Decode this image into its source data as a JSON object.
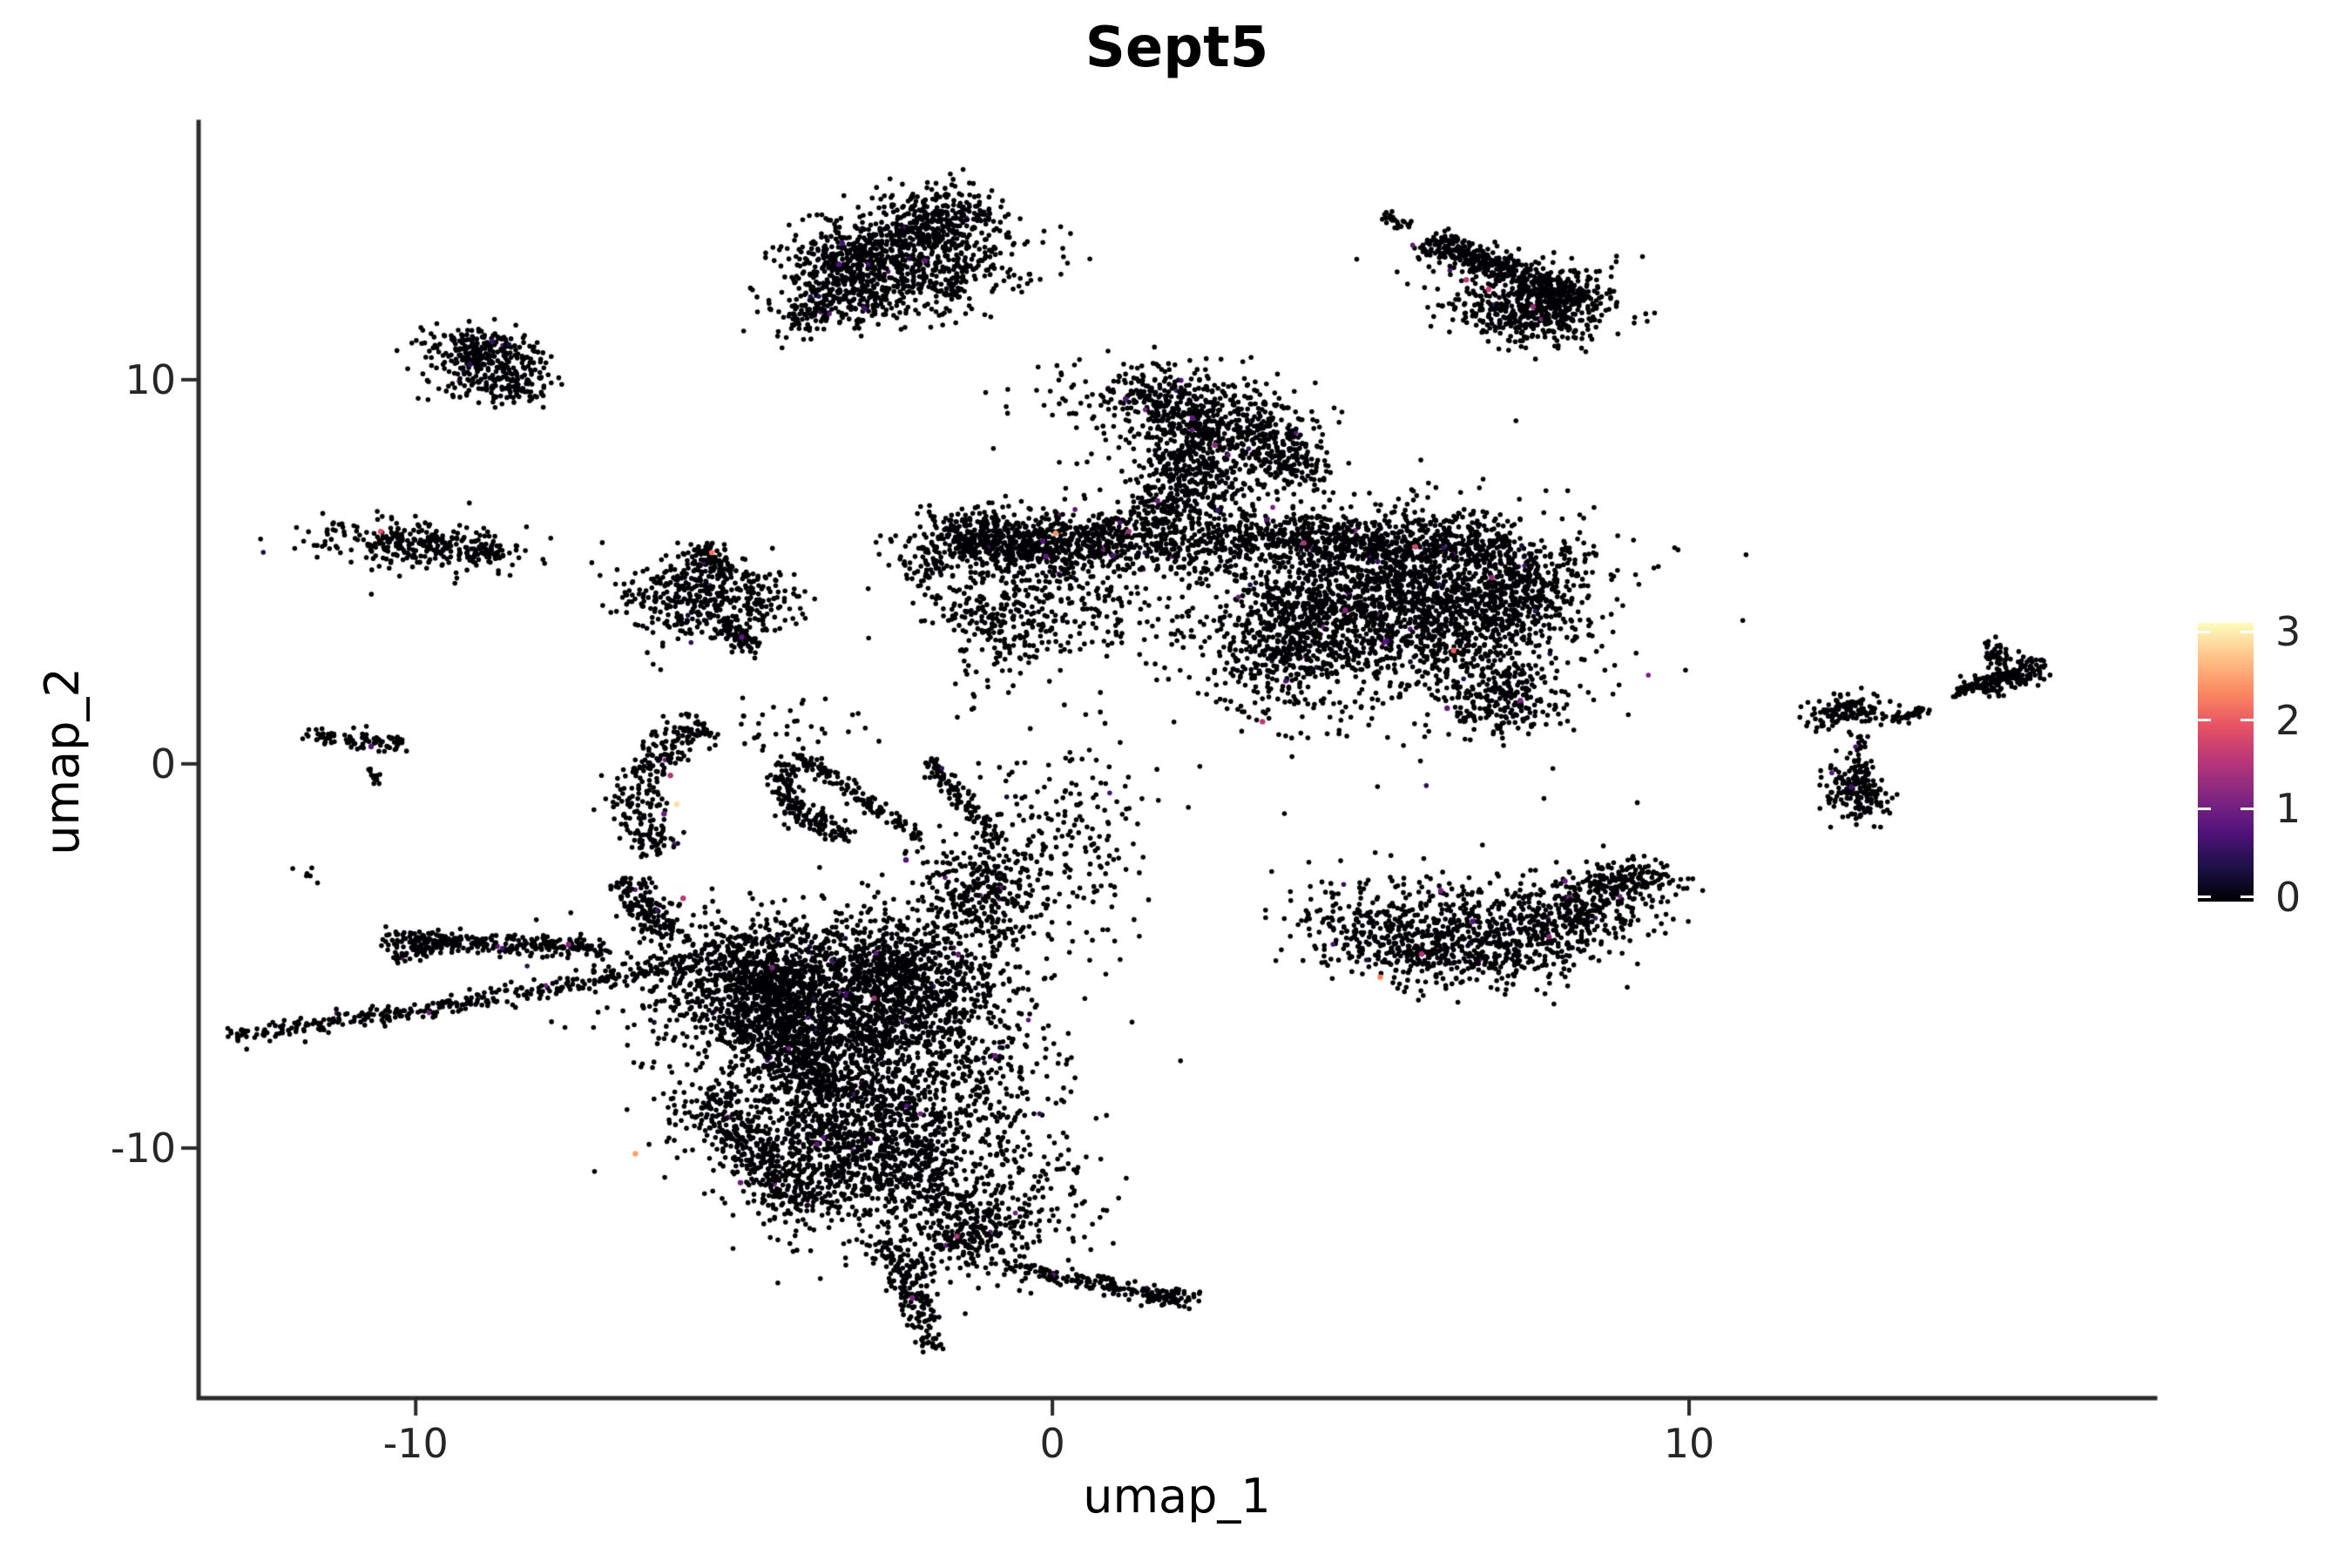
{
  "title": "Sept5",
  "axes": {
    "x_label": "umap_1",
    "y_label": "umap_2",
    "x_ticks": [
      -10,
      0,
      10
    ],
    "y_ticks": [
      -10,
      0,
      10
    ]
  },
  "legend": {
    "ticks": [
      0,
      1,
      2,
      3
    ],
    "bar_range": [
      -0.05,
      3.1
    ],
    "colormap": [
      "#000004",
      "#1D1147",
      "#51127C",
      "#822681",
      "#B63679",
      "#E65164",
      "#FB8861",
      "#FEC287",
      "#FCFDBF"
    ]
  },
  "chart_data": {
    "type": "scatter",
    "title": "Sept5",
    "xlabel": "umap_1",
    "ylabel": "umap_2",
    "xlim": [
      -13.41,
      17.32
    ],
    "ylim": [
      -16.51,
      16.71
    ],
    "grid": false,
    "legend_position": "right",
    "value_range": [
      0,
      3.1
    ],
    "point_radius_px": 2.8,
    "seed": 7,
    "sprinkle": {
      "fraction": 0.008,
      "value_range": [
        0.25,
        1.1
      ]
    },
    "clusters": [
      {
        "kind": "line",
        "x1": -3.7,
        "y1": 12.6,
        "x2": -1.2,
        "y2": 14.6,
        "w": 0.45,
        "n": 600
      },
      {
        "kind": "blob",
        "cx": -2.3,
        "cy": 13.1,
        "sx": 1.0,
        "sy": 0.7,
        "rot": 28,
        "n": 400
      },
      {
        "kind": "line",
        "x1": -4.15,
        "y1": 11.5,
        "x2": -3.1,
        "y2": 12.35,
        "w": 0.28,
        "n": 140
      },
      {
        "kind": "blob",
        "cx": -1.8,
        "cy": 12.5,
        "sx": 0.8,
        "sy": 0.45,
        "rot": 10,
        "n": 160
      },
      {
        "kind": "blob",
        "cx": -2.9,
        "cy": 11.9,
        "sx": 0.5,
        "sy": 0.3,
        "rot": 0,
        "n": 45
      },
      {
        "kind": "line",
        "x1": 5.22,
        "y1": 14.35,
        "x2": 5.62,
        "y2": 13.95,
        "w": 0.07,
        "n": 25
      },
      {
        "kind": "line",
        "x1": 5.9,
        "y1": 13.65,
        "x2": 8.3,
        "y2": 12.0,
        "w": 0.2,
        "n": 360
      },
      {
        "kind": "blob",
        "cx": 7.3,
        "cy": 12.4,
        "sx": 0.8,
        "sy": 0.4,
        "rot": -30,
        "n": 150
      },
      {
        "kind": "blob",
        "cx": 8.0,
        "cy": 11.95,
        "sx": 0.42,
        "sy": 0.5,
        "rot": -25,
        "n": 280
      },
      {
        "kind": "blob",
        "cx": 7.1,
        "cy": 11.6,
        "sx": 0.45,
        "sy": 0.3,
        "rot": -15,
        "n": 170
      },
      {
        "kind": "blob",
        "cx": -9.05,
        "cy": 10.85,
        "sx": 0.42,
        "sy": 0.3,
        "rot": -10,
        "n": 160
      },
      {
        "kind": "blob",
        "cx": -8.8,
        "cy": 10.25,
        "sx": 0.45,
        "sy": 0.38,
        "rot": 15,
        "n": 180
      },
      {
        "kind": "blob",
        "cx": -8.35,
        "cy": 9.8,
        "sx": 0.24,
        "sy": 0.22,
        "rot": 0,
        "n": 60
      },
      {
        "kind": "blob",
        "cx": -9.9,
        "cy": 5.72,
        "sx": 0.82,
        "sy": 0.3,
        "rot": -6,
        "n": 300
      },
      {
        "kind": "line",
        "x1": -9.1,
        "y1": 5.5,
        "x2": -8.7,
        "y2": 5.45,
        "w": 0.12,
        "n": 40
      },
      {
        "kind": "blob",
        "cx": -5.62,
        "cy": 4.3,
        "sx": 0.55,
        "sy": 0.5,
        "rot": -20,
        "n": 320
      },
      {
        "kind": "line",
        "x1": -5.5,
        "y1": 5.6,
        "x2": -5.2,
        "y2": 5.0,
        "w": 0.17,
        "n": 90
      },
      {
        "kind": "blob",
        "cx": -4.62,
        "cy": 4.4,
        "sx": 0.35,
        "sy": 0.45,
        "rot": 0,
        "n": 90
      },
      {
        "kind": "line",
        "x1": -5.2,
        "y1": 3.7,
        "x2": -4.68,
        "y2": 2.95,
        "w": 0.15,
        "n": 80
      },
      {
        "kind": "line",
        "x1": -11.7,
        "y1": 0.75,
        "x2": -10.2,
        "y2": 0.55,
        "w": 0.11,
        "n": 85
      },
      {
        "kind": "line",
        "x1": -10.72,
        "y1": -0.1,
        "x2": -10.55,
        "y2": -0.48,
        "w": 0.05,
        "n": 14
      },
      {
        "kind": "blob",
        "cx": -11.7,
        "cy": -2.9,
        "sx": 0.1,
        "sy": 0.12,
        "rot": 0,
        "n": 6
      },
      {
        "kind": "line",
        "x1": 2.0,
        "y1": 6.3,
        "x2": 2.4,
        "y2": 8.9,
        "w": 0.42,
        "n": 380
      },
      {
        "kind": "blob",
        "cx": 2.1,
        "cy": 9.35,
        "sx": 1.05,
        "sy": 0.5,
        "rot": -12,
        "n": 430
      },
      {
        "kind": "line",
        "x1": 3.0,
        "y1": 8.9,
        "x2": 4.05,
        "y2": 7.5,
        "w": 0.3,
        "n": 220
      },
      {
        "kind": "blob",
        "cx": 2.3,
        "cy": 7.8,
        "sx": 0.9,
        "sy": 0.95,
        "rot": 0,
        "n": 220
      },
      {
        "kind": "blob",
        "cx": -0.4,
        "cy": 5.75,
        "sx": 0.75,
        "sy": 0.4,
        "rot": -4,
        "n": 560
      },
      {
        "kind": "blob",
        "cx": -1.35,
        "cy": 5.9,
        "sx": 0.35,
        "sy": 0.3,
        "rot": 0,
        "n": 150
      },
      {
        "kind": "line",
        "x1": 0.5,
        "y1": 5.9,
        "x2": 3.0,
        "y2": 5.85,
        "w": 0.38,
        "n": 350
      },
      {
        "kind": "blob",
        "cx": 0.0,
        "cy": 4.3,
        "sx": 0.9,
        "sy": 0.8,
        "rot": 0,
        "n": 280
      },
      {
        "kind": "blob",
        "cx": -0.9,
        "cy": 3.6,
        "sx": 0.4,
        "sy": 0.8,
        "rot": 0,
        "n": 160
      },
      {
        "kind": "blob",
        "cx": -1.95,
        "cy": 5.2,
        "sx": 0.25,
        "sy": 0.5,
        "rot": 0,
        "n": 60
      },
      {
        "kind": "line",
        "x1": 3.0,
        "y1": 5.95,
        "x2": 7.0,
        "y2": 5.7,
        "w": 0.33,
        "n": 550
      },
      {
        "kind": "blob",
        "cx": 5.4,
        "cy": 4.2,
        "sx": 1.35,
        "sy": 1.05,
        "rot": -8,
        "n": 1600
      },
      {
        "kind": "blob",
        "cx": 7.4,
        "cy": 4.6,
        "sx": 0.45,
        "sy": 0.8,
        "rot": 0,
        "n": 300
      },
      {
        "kind": "blob",
        "cx": 3.6,
        "cy": 2.9,
        "sx": 0.6,
        "sy": 0.8,
        "rot": 0,
        "n": 350
      },
      {
        "kind": "blob",
        "cx": 7.05,
        "cy": 1.7,
        "sx": 0.42,
        "sy": 0.5,
        "rot": 30,
        "n": 220
      },
      {
        "kind": "blob",
        "cx": 5.2,
        "cy": 4.0,
        "sx": 1.8,
        "sy": 1.5,
        "rot": 0,
        "n": 500
      },
      {
        "kind": "arc",
        "cx": -4.0,
        "cy": -1.0,
        "r": 2.5,
        "a1": 125,
        "a2": 212,
        "w": 0.22,
        "n": 260
      },
      {
        "kind": "line",
        "x1": -6.65,
        "y1": -3.0,
        "x2": -6.1,
        "y2": -4.5,
        "w": 0.18,
        "n": 150
      },
      {
        "kind": "arc",
        "cx": -2.6,
        "cy": -0.4,
        "r": 1.6,
        "a1": 165,
        "a2": 250,
        "w": 0.16,
        "n": 170
      },
      {
        "kind": "line",
        "x1": -4.0,
        "y1": 0.27,
        "x2": -2.1,
        "y2": -1.9,
        "w": 0.09,
        "n": 130
      },
      {
        "kind": "line",
        "x1": -1.97,
        "y1": 0.14,
        "x2": -0.86,
        "y2": -1.97,
        "w": 0.09,
        "n": 110
      },
      {
        "kind": "blob",
        "cx": -1.1,
        "cy": -3.3,
        "sx": 0.45,
        "sy": 0.65,
        "rot": 10,
        "n": 280
      },
      {
        "kind": "blob",
        "cx": 0.2,
        "cy": -2.0,
        "sx": 0.75,
        "sy": 1.3,
        "rot": 0,
        "n": 220
      },
      {
        "kind": "line",
        "x1": -10.5,
        "y1": -4.55,
        "x2": -7.0,
        "y2": -4.8,
        "w": 0.14,
        "n": 280
      },
      {
        "kind": "line",
        "x1": -10.4,
        "y1": -5.05,
        "x2": -9.4,
        "y2": -4.6,
        "w": 0.1,
        "n": 70
      },
      {
        "kind": "line",
        "x1": -12.9,
        "y1": -7.1,
        "x2": -9.5,
        "y2": -6.3,
        "w": 0.12,
        "n": 160
      },
      {
        "kind": "line",
        "x1": -9.5,
        "y1": -6.3,
        "x2": -5.6,
        "y2": -5.15,
        "w": 0.13,
        "n": 200
      },
      {
        "kind": "blob",
        "cx": -4.6,
        "cy": -5.6,
        "sx": 0.75,
        "sy": 0.75,
        "rot": 0,
        "n": 700
      },
      {
        "kind": "blob",
        "cx": -3.3,
        "cy": -6.5,
        "sx": 1.15,
        "sy": 1.05,
        "rot": -15,
        "n": 1500
      },
      {
        "kind": "blob",
        "cx": -2.2,
        "cy": -5.2,
        "sx": 0.7,
        "sy": 0.8,
        "rot": 0,
        "n": 450
      },
      {
        "kind": "line",
        "x1": -4.9,
        "y1": -6.6,
        "x2": -3.3,
        "y2": -8.6,
        "w": 0.28,
        "n": 250
      },
      {
        "kind": "blob",
        "cx": -3.5,
        "cy": -6.3,
        "sx": 1.7,
        "sy": 1.5,
        "rot": 0,
        "n": 450
      },
      {
        "kind": "blob",
        "cx": -3.2,
        "cy": -8.7,
        "sx": 1.2,
        "sy": 0.6,
        "rot": -20,
        "n": 250
      },
      {
        "kind": "blob",
        "cx": -2.9,
        "cy": -10.2,
        "sx": 1.15,
        "sy": 0.95,
        "rot": -35,
        "n": 1100
      },
      {
        "kind": "line",
        "x1": -5.5,
        "y1": -8.6,
        "x2": -3.9,
        "y2": -11.6,
        "w": 0.28,
        "n": 350
      },
      {
        "kind": "blob",
        "cx": -1.4,
        "cy": -12.2,
        "sx": 0.55,
        "sy": 0.6,
        "rot": 20,
        "n": 300
      },
      {
        "kind": "line",
        "x1": -2.6,
        "y1": -12.4,
        "x2": -1.95,
        "y2": -14.6,
        "w": 0.16,
        "n": 160
      },
      {
        "kind": "blob",
        "cx": -1.9,
        "cy": -15.0,
        "sx": 0.12,
        "sy": 0.15,
        "rot": 0,
        "n": 25
      },
      {
        "kind": "line",
        "x1": -0.7,
        "y1": -13.1,
        "x2": 1.75,
        "y2": -13.85,
        "w": 0.12,
        "n": 150
      },
      {
        "kind": "blob",
        "cx": 1.92,
        "cy": -13.9,
        "sx": 0.22,
        "sy": 0.13,
        "rot": 0,
        "n": 50
      },
      {
        "kind": "blob",
        "cx": -1.2,
        "cy": -8.3,
        "sx": 0.8,
        "sy": 1.0,
        "rot": 0,
        "n": 200
      },
      {
        "kind": "blob",
        "cx": 0.0,
        "cy": -11.3,
        "sx": 0.5,
        "sy": 0.8,
        "rot": 0,
        "n": 70
      },
      {
        "kind": "blob",
        "cx": -4.3,
        "cy": 0.9,
        "sx": 0.7,
        "sy": 0.4,
        "rot": 0,
        "n": 40
      },
      {
        "kind": "blob",
        "cx": 12.48,
        "cy": 1.38,
        "sx": 0.33,
        "sy": 0.22,
        "rot": 20,
        "n": 130
      },
      {
        "kind": "line",
        "x1": 13.2,
        "y1": 1.15,
        "x2": 13.7,
        "y2": 1.45,
        "w": 0.07,
        "n": 40
      },
      {
        "kind": "line",
        "x1": 14.15,
        "y1": 1.75,
        "x2": 14.5,
        "y2": 2.1,
        "w": 0.05,
        "n": 22
      },
      {
        "kind": "line",
        "x1": 14.5,
        "y1": 1.95,
        "x2": 15.5,
        "y2": 2.6,
        "w": 0.16,
        "n": 170
      },
      {
        "kind": "blob",
        "cx": 14.82,
        "cy": 2.85,
        "sx": 0.12,
        "sy": 0.18,
        "rot": 0,
        "n": 35
      },
      {
        "kind": "line",
        "x1": 12.68,
        "y1": 0.75,
        "x2": 12.72,
        "y2": -0.2,
        "w": 0.06,
        "n": 30
      },
      {
        "kind": "blob",
        "cx": 12.6,
        "cy": -0.72,
        "sx": 0.27,
        "sy": 0.34,
        "rot": 0,
        "n": 170
      },
      {
        "kind": "blob",
        "cx": 5.2,
        "cy": -4.3,
        "sx": 0.8,
        "sy": 0.55,
        "rot": -25,
        "n": 300
      },
      {
        "kind": "blob",
        "cx": 6.6,
        "cy": -4.9,
        "sx": 0.9,
        "sy": 0.45,
        "rot": 5,
        "n": 350
      },
      {
        "kind": "blob",
        "cx": 8.3,
        "cy": -3.9,
        "sx": 0.8,
        "sy": 0.5,
        "rot": 35,
        "n": 350
      },
      {
        "kind": "blob",
        "cx": 8.95,
        "cy": -3.05,
        "sx": 0.35,
        "sy": 0.3,
        "rot": 0,
        "n": 120
      },
      {
        "kind": "blob",
        "cx": 6.8,
        "cy": -3.8,
        "sx": 1.1,
        "sy": 0.5,
        "rot": 0,
        "n": 160
      }
    ],
    "highlight_points": [
      [
        -3.3,
        13.55,
        0.7
      ],
      [
        -3.35,
        13.0,
        0.8
      ],
      [
        -2.0,
        13.1,
        0.9
      ],
      [
        -2.95,
        11.85,
        0.7
      ],
      [
        6.5,
        12.6,
        1.6
      ],
      [
        6.85,
        12.35,
        1.7
      ],
      [
        7.55,
        11.9,
        1.3
      ],
      [
        -8.8,
        11.0,
        0.6
      ],
      [
        -9.15,
        10.4,
        0.5
      ],
      [
        -10.55,
        6.05,
        1.9
      ],
      [
        -5.35,
        5.5,
        2.2
      ],
      [
        -4.88,
        3.3,
        0.9
      ],
      [
        -10.7,
        0.45,
        0.8
      ],
      [
        0.05,
        6.0,
        2.4
      ],
      [
        1.65,
        6.85,
        1.0
      ],
      [
        1.2,
        6.05,
        1.4
      ],
      [
        -0.15,
        5.8,
        0.8
      ],
      [
        -0.1,
        5.4,
        0.9
      ],
      [
        0.95,
        5.42,
        0.7
      ],
      [
        3.95,
        5.75,
        1.5
      ],
      [
        5.7,
        5.65,
        1.8
      ],
      [
        6.3,
        2.95,
        2.0
      ],
      [
        3.3,
        1.1,
        1.6
      ],
      [
        7.35,
        1.65,
        1.1
      ],
      [
        6.2,
        1.45,
        0.9
      ],
      [
        4.6,
        4.0,
        1.2
      ],
      [
        5.25,
        3.2,
        0.8
      ],
      [
        6.9,
        4.85,
        1.3
      ],
      [
        2.2,
        9.0,
        0.9
      ],
      [
        2.55,
        8.3,
        1.2
      ],
      [
        1.15,
        9.5,
        0.8
      ],
      [
        2.6,
        6.6,
        0.6
      ],
      [
        -6.0,
        -0.3,
        1.5
      ],
      [
        -5.9,
        -1.05,
        2.9
      ],
      [
        -6.1,
        -1.3,
        1.0
      ],
      [
        -5.8,
        -3.5,
        1.6
      ],
      [
        -6.55,
        -10.15,
        2.5
      ],
      [
        -4.9,
        -10.9,
        1.0
      ],
      [
        -4.4,
        -5.3,
        1.1
      ],
      [
        -2.8,
        -6.1,
        1.4
      ],
      [
        -1.5,
        -12.3,
        1.5
      ],
      [
        -2.2,
        -13.9,
        1.1
      ],
      [
        -3.7,
        -9.9,
        0.9
      ],
      [
        -7.6,
        -4.7,
        1.2
      ],
      [
        -2.3,
        -2.5,
        0.8
      ],
      [
        -0.9,
        -7.6,
        1.0
      ],
      [
        5.15,
        -5.55,
        2.3
      ],
      [
        8.05,
        -3.05,
        1.0
      ],
      [
        6.6,
        -4.1,
        0.8
      ],
      [
        7.8,
        -4.5,
        1.2
      ],
      [
        5.8,
        -4.95,
        1.5
      ],
      [
        6.1,
        -3.3,
        1.1
      ],
      [
        12.55,
        -0.6,
        0.7
      ]
    ]
  }
}
